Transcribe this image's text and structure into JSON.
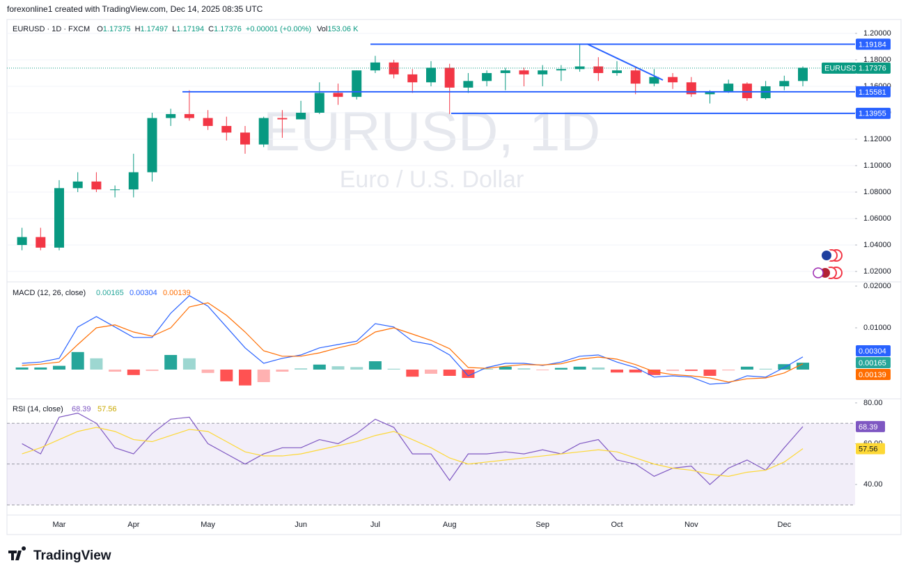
{
  "header": {
    "caption": "forexonline1 created with TradingView.com, Dec 14, 2025 08:35 UTC",
    "symbol": "EURUSD · 1D · FXCM",
    "ohlc": [
      {
        "key": "O",
        "value": "1.17375"
      },
      {
        "key": "H",
        "value": "1.17497"
      },
      {
        "key": "L",
        "value": "1.17194"
      },
      {
        "key": "C",
        "value": "1.17376"
      }
    ],
    "change": "+0.00001 (+0.00%)",
    "volume": {
      "key": "Vol",
      "value": "153.06 K"
    }
  },
  "chart_data": [
    {
      "type": "candlestick",
      "watermark": "EURUSD, 1D",
      "subtitle": "Euro / U.S. Dollar",
      "categories": [
        null,
        null,
        "Mar",
        null,
        null,
        null,
        "Apr",
        null,
        null,
        null,
        "May",
        null,
        null,
        null,
        null,
        "Jun",
        null,
        null,
        null,
        "Jul",
        null,
        null,
        null,
        "Aug",
        null,
        null,
        null,
        null,
        "Sep",
        null,
        null,
        null,
        "Oct",
        null,
        null,
        null,
        "Nov",
        null,
        null,
        null,
        null,
        "Dec",
        null
      ],
      "open": [
        1.04,
        1.046,
        1.038,
        1.083,
        1.088,
        1.082,
        1.082,
        1.095,
        1.136,
        1.139,
        1.136,
        1.13,
        1.125,
        1.116,
        1.136,
        1.135,
        1.14,
        1.155,
        1.152,
        1.172,
        1.178,
        1.169,
        1.163,
        1.174,
        1.159,
        1.164,
        1.17,
        1.172,
        1.169,
        1.172,
        1.173,
        1.175,
        1.17,
        1.172,
        1.162,
        1.167,
        1.163,
        1.154,
        1.156,
        1.162,
        1.151,
        1.16,
        1.164
      ],
      "high": [
        1.053,
        1.053,
        1.089,
        1.095,
        1.095,
        1.085,
        1.109,
        1.14,
        1.143,
        1.157,
        1.142,
        1.137,
        1.13,
        1.137,
        1.142,
        1.149,
        1.163,
        1.162,
        1.172,
        1.183,
        1.18,
        1.173,
        1.179,
        1.177,
        1.17,
        1.172,
        1.174,
        1.174,
        1.176,
        1.176,
        1.192,
        1.182,
        1.179,
        1.175,
        1.173,
        1.17,
        1.167,
        1.157,
        1.165,
        1.163,
        1.164,
        1.168,
        1.175
      ],
      "low": [
        1.036,
        1.036,
        1.036,
        1.08,
        1.08,
        1.076,
        1.076,
        1.088,
        1.13,
        1.134,
        1.127,
        1.119,
        1.109,
        1.114,
        1.121,
        1.135,
        1.139,
        1.146,
        1.15,
        1.17,
        1.166,
        1.155,
        1.16,
        1.139,
        1.155,
        1.16,
        1.157,
        1.16,
        1.16,
        1.164,
        1.171,
        1.164,
        1.168,
        1.154,
        1.16,
        1.158,
        1.152,
        1.147,
        1.155,
        1.149,
        1.15,
        1.157,
        1.16
      ],
      "close": [
        1.046,
        1.038,
        1.083,
        1.088,
        1.082,
        1.082,
        1.095,
        1.136,
        1.139,
        1.136,
        1.13,
        1.125,
        1.116,
        1.136,
        1.135,
        1.14,
        1.155,
        1.152,
        1.172,
        1.178,
        1.169,
        1.163,
        1.174,
        1.159,
        1.164,
        1.17,
        1.172,
        1.169,
        1.172,
        1.173,
        1.175,
        1.17,
        1.172,
        1.162,
        1.167,
        1.163,
        1.154,
        1.156,
        1.162,
        1.151,
        1.16,
        1.164,
        1.174
      ],
      "up_color": "#089981",
      "down_color": "#f23645",
      "ylim": [
        1.0121,
        1.2105
      ],
      "yticks": [
        {
          "value": 1.02,
          "label": "1.02000"
        },
        {
          "value": 1.04,
          "label": "1.04000"
        },
        {
          "value": 1.06,
          "label": "1.06000"
        },
        {
          "value": 1.08,
          "label": "1.08000"
        },
        {
          "value": 1.1,
          "label": "1.10000"
        },
        {
          "value": 1.12,
          "label": "1.12000"
        },
        {
          "value": 1.14,
          "label": "1.14000"
        },
        {
          "value": 1.16,
          "label": "1.16000"
        },
        {
          "value": 1.18,
          "label": "1.18000"
        },
        {
          "value": 1.2,
          "label": "1.20000"
        }
      ],
      "grid": true,
      "levels": [
        1.19184,
        1.15581,
        1.13955
      ],
      "level_color": "#2962ff",
      "last_price": {
        "symbol": "EURUSD",
        "value": 1.17376,
        "color": "#089981"
      }
    },
    {
      "type": "macd",
      "title": "MACD (12, 26, close)",
      "histogram": {
        "color": "#26a69a",
        "negative_color": "#ff5252",
        "values": [
          0.0005,
          0.0005,
          0.0009,
          0.0042,
          0.0027,
          -0.0005,
          -0.0013,
          -0.0003,
          0.0035,
          0.0027,
          -0.0008,
          -0.0028,
          -0.0038,
          -0.003,
          -0.0005,
          0.0003,
          0.0012,
          0.0008,
          0.0006,
          0.002,
          0.0002,
          -0.0017,
          -0.001,
          -0.0015,
          -0.002,
          0.0002,
          0.0007,
          0.0003,
          -0.0001,
          0.0004,
          0.0007,
          0.0005,
          -0.0007,
          -0.0007,
          -0.0013,
          -0.0003,
          -0.0003,
          -0.0015,
          -0.0002,
          0.0007,
          0.0002,
          0.0013,
          0.00165
        ]
      },
      "macd": {
        "color": "#2962ff",
        "values": [
          0.0015,
          0.0018,
          0.0027,
          0.0102,
          0.0127,
          0.0102,
          0.0077,
          0.0077,
          0.0135,
          0.0177,
          0.0152,
          0.0102,
          0.0052,
          0.0015,
          0.0027,
          0.0035,
          0.0052,
          0.006,
          0.0068,
          0.011,
          0.0102,
          0.0068,
          0.006,
          0.0035,
          -0.0015,
          0.0005,
          0.0015,
          0.0015,
          0.001,
          0.0018,
          0.0032,
          0.0035,
          0.0018,
          0.0005,
          -0.0018,
          -0.0015,
          -0.0018,
          -0.0035,
          -0.0032,
          -0.0015,
          -0.0018,
          0.0005,
          0.00304
        ]
      },
      "signal": {
        "color": "#ff6d00",
        "values": [
          0.001,
          0.0013,
          0.0018,
          0.006,
          0.01,
          0.0107,
          0.009,
          0.008,
          0.01,
          0.015,
          0.016,
          0.013,
          0.009,
          0.0045,
          0.0032,
          0.0032,
          0.004,
          0.0052,
          0.0062,
          0.009,
          0.01,
          0.0085,
          0.007,
          0.005,
          0.0005,
          0.0003,
          0.0008,
          0.0012,
          0.0011,
          0.0014,
          0.0025,
          0.003,
          0.0025,
          0.0012,
          -0.0005,
          -0.0012,
          -0.0015,
          -0.002,
          -0.003,
          -0.0022,
          -0.002,
          -0.0008,
          0.00139
        ]
      },
      "ylim": [
        -0.007,
        0.021
      ],
      "yticks": [
        {
          "value": 0.01,
          "label": "0.01000"
        },
        {
          "value": 0.02,
          "label": "0.02000"
        }
      ]
    },
    {
      "type": "rsi",
      "title": "RSI (14, close)",
      "rsi": {
        "color": "#7e57c2",
        "values": [
          60,
          55,
          73,
          75,
          70,
          58,
          55,
          65,
          72,
          73,
          60,
          55,
          50,
          55,
          58,
          58,
          62,
          60,
          65,
          72,
          68,
          55,
          55,
          42,
          55,
          55,
          56,
          55,
          57,
          55,
          60,
          62,
          52,
          50,
          44,
          48,
          49,
          40,
          48,
          52,
          47,
          58,
          68.39
        ]
      },
      "ma": {
        "color": "#fdd835",
        "values": [
          55,
          58,
          62,
          66,
          68,
          66,
          62,
          61,
          64,
          67,
          66,
          61,
          56,
          54,
          54,
          55,
          57,
          59,
          61,
          64,
          66,
          62,
          58,
          53,
          50,
          51,
          52,
          53,
          54,
          55,
          56,
          57,
          56,
          53,
          50,
          48,
          47,
          45,
          44,
          46,
          47,
          51,
          57.56
        ]
      },
      "ylim": [
        25,
        82
      ],
      "yticks": [
        {
          "value": 40,
          "label": "40.00"
        },
        {
          "value": 60,
          "label": "60.00"
        },
        {
          "value": 80,
          "label": "80.00"
        }
      ],
      "bands": [
        70,
        50,
        30
      ]
    }
  ],
  "footer": {
    "brand": "TradingView"
  }
}
